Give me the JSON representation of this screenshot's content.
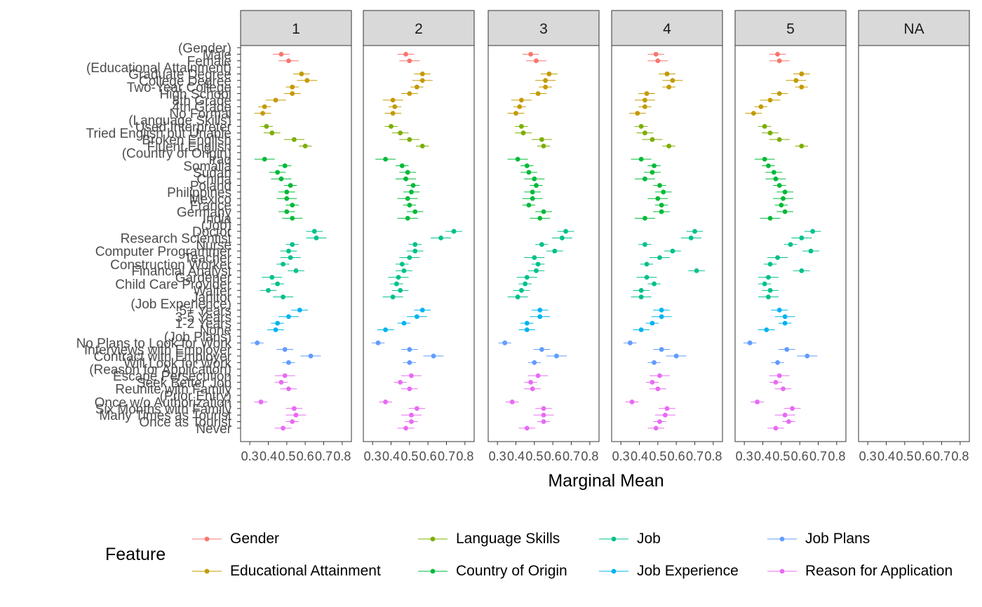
{
  "chart_data": {
    "type": "scatter",
    "subtype": "faceted point estimates with confidence intervals (horizontal error bars)",
    "xlabel": "Marginal Mean",
    "ylabel": "",
    "xlim": [
      0.25,
      0.85
    ],
    "xticks": [
      "0.3",
      "0.4",
      "0.5",
      "0.6",
      "0.7",
      "0.8"
    ],
    "xtick_values": [
      0.3,
      0.4,
      0.5,
      0.6,
      0.7,
      0.8
    ],
    "grid": false,
    "facets": [
      "1",
      "2",
      "3",
      "4",
      "5",
      "NA"
    ],
    "legend": {
      "title": "Feature",
      "position": "bottom",
      "entries": [
        {
          "name": "Gender",
          "color": "#F8766D"
        },
        {
          "name": "Educational Attainment",
          "color": "#C49A00"
        },
        {
          "name": "Language Skills",
          "color": "#7CAE00"
        },
        {
          "name": "Country of Origin",
          "color": "#00BA38"
        },
        {
          "name": "Job",
          "color": "#00C08B"
        },
        {
          "name": "Job Experience",
          "color": "#00B4EF"
        },
        {
          "name": "Job Plans",
          "color": "#619CFF"
        },
        {
          "name": "Reason for Application",
          "color": "#E76BF3"
        }
      ]
    },
    "rows": [
      {
        "label": "(Gender)",
        "feature": "Gender",
        "header": true
      },
      {
        "label": "Male",
        "feature": "Gender"
      },
      {
        "label": "Female",
        "feature": "Gender"
      },
      {
        "label": "(Educational Attainment)",
        "feature": "Educational Attainment",
        "header": true
      },
      {
        "label": "Graduate Degree",
        "feature": "Educational Attainment"
      },
      {
        "label": "College Degree",
        "feature": "Educational Attainment"
      },
      {
        "label": "Two-Year College",
        "feature": "Educational Attainment"
      },
      {
        "label": "High School",
        "feature": "Educational Attainment"
      },
      {
        "label": "8th Grade",
        "feature": "Educational Attainment"
      },
      {
        "label": "4th Grade",
        "feature": "Educational Attainment"
      },
      {
        "label": "No Formal",
        "feature": "Educational Attainment"
      },
      {
        "label": "(Language Skills)",
        "feature": "Language Skills",
        "header": true
      },
      {
        "label": "Used Interpreter",
        "feature": "Language Skills"
      },
      {
        "label": "Tried English but Unable",
        "feature": "Language Skills"
      },
      {
        "label": "Broken English",
        "feature": "Language Skills"
      },
      {
        "label": "Fluent English",
        "feature": "Language Skills"
      },
      {
        "label": "(Country of Origin)",
        "feature": "Country of Origin",
        "header": true
      },
      {
        "label": "Iraq",
        "feature": "Country of Origin"
      },
      {
        "label": "Somalia",
        "feature": "Country of Origin"
      },
      {
        "label": "Sudan",
        "feature": "Country of Origin"
      },
      {
        "label": "China",
        "feature": "Country of Origin"
      },
      {
        "label": "Poland",
        "feature": "Country of Origin"
      },
      {
        "label": "Philippines",
        "feature": "Country of Origin"
      },
      {
        "label": "Mexico",
        "feature": "Country of Origin"
      },
      {
        "label": "France",
        "feature": "Country of Origin"
      },
      {
        "label": "Germany",
        "feature": "Country of Origin"
      },
      {
        "label": "India",
        "feature": "Country of Origin"
      },
      {
        "label": "(Job)",
        "feature": "Job",
        "header": true
      },
      {
        "label": "Doctor",
        "feature": "Job"
      },
      {
        "label": "Research Scientist",
        "feature": "Job"
      },
      {
        "label": "Nurse",
        "feature": "Job"
      },
      {
        "label": "Computer Programmer",
        "feature": "Job"
      },
      {
        "label": "Teacher",
        "feature": "Job"
      },
      {
        "label": "Construction Worker",
        "feature": "Job"
      },
      {
        "label": "Financial Analyst",
        "feature": "Job"
      },
      {
        "label": "Gardener",
        "feature": "Job"
      },
      {
        "label": "Child Care Provider",
        "feature": "Job"
      },
      {
        "label": "Waiter",
        "feature": "Job"
      },
      {
        "label": "Janitor",
        "feature": "Job"
      },
      {
        "label": "(Job Experience)",
        "feature": "Job Experience",
        "header": true
      },
      {
        "label": "5+ Years",
        "feature": "Job Experience"
      },
      {
        "label": "3-5 Years",
        "feature": "Job Experience"
      },
      {
        "label": "1-2 Years",
        "feature": "Job Experience"
      },
      {
        "label": "None",
        "feature": "Job Experience"
      },
      {
        "label": "(Job Plans)",
        "feature": "Job Plans",
        "header": true
      },
      {
        "label": "No Plans to Look for Work",
        "feature": "Job Plans"
      },
      {
        "label": "Interviews with Employer",
        "feature": "Job Plans"
      },
      {
        "label": "Contract with Employer",
        "feature": "Job Plans"
      },
      {
        "label": "Will Look for Work",
        "feature": "Job Plans"
      },
      {
        "label": "(Reason for Application)",
        "feature": "Reason for Application",
        "header": true
      },
      {
        "label": "Escape Persecution",
        "feature": "Reason for Application"
      },
      {
        "label": "Seek Better Job",
        "feature": "Reason for Application"
      },
      {
        "label": "Reunite with Family",
        "feature": "Reason for Application"
      },
      {
        "label": "(Prior Entry)",
        "feature": "Reason for Application",
        "header": true
      },
      {
        "label": "Once w/o Authorization",
        "feature": "Reason for Application"
      },
      {
        "label": "Six Months with Family",
        "feature": "Reason for Application"
      },
      {
        "label": "Many Times as Tourist",
        "feature": "Reason for Application"
      },
      {
        "label": "Once as Tourist",
        "feature": "Reason for Application"
      },
      {
        "label": "Never",
        "feature": "Reason for Application"
      }
    ],
    "series": [
      {
        "facet": "1",
        "estimates": [
          null,
          0.47,
          0.51,
          null,
          0.58,
          0.61,
          0.53,
          0.53,
          0.44,
          0.38,
          0.37,
          null,
          0.39,
          0.42,
          0.54,
          0.6,
          null,
          0.38,
          0.49,
          0.45,
          0.47,
          0.52,
          0.5,
          0.5,
          0.53,
          0.5,
          0.53,
          null,
          0.65,
          0.66,
          0.53,
          0.51,
          0.52,
          0.48,
          0.55,
          0.42,
          0.45,
          0.4,
          0.48,
          null,
          0.57,
          0.51,
          0.45,
          0.44,
          null,
          0.34,
          0.49,
          0.63,
          0.51,
          null,
          0.49,
          0.47,
          0.51,
          null,
          0.36,
          0.54,
          0.55,
          0.53,
          0.48
        ]
      },
      {
        "facet": "2",
        "estimates": [
          null,
          0.48,
          0.5,
          null,
          0.57,
          0.57,
          0.54,
          0.5,
          0.41,
          0.42,
          0.41,
          null,
          0.4,
          0.45,
          0.5,
          0.57,
          null,
          0.37,
          0.46,
          0.49,
          0.48,
          0.52,
          0.51,
          0.49,
          0.5,
          0.53,
          0.49,
          null,
          0.74,
          0.67,
          0.53,
          0.53,
          0.5,
          0.46,
          0.47,
          0.44,
          0.43,
          0.45,
          0.41,
          null,
          0.57,
          0.54,
          0.47,
          0.37,
          null,
          0.33,
          0.5,
          0.63,
          0.5,
          null,
          0.51,
          0.45,
          0.5,
          null,
          0.37,
          0.54,
          0.51,
          0.51,
          0.48
        ]
      },
      {
        "facet": "3",
        "estimates": [
          null,
          0.48,
          0.51,
          null,
          0.58,
          0.56,
          0.56,
          0.52,
          0.43,
          0.42,
          0.4,
          null,
          0.43,
          0.44,
          0.54,
          0.55,
          null,
          0.41,
          0.46,
          0.47,
          0.5,
          0.51,
          0.49,
          0.49,
          0.47,
          0.55,
          0.53,
          null,
          0.67,
          0.65,
          0.54,
          0.61,
          0.5,
          0.52,
          0.51,
          0.46,
          0.45,
          0.43,
          0.41,
          null,
          0.53,
          0.53,
          0.46,
          0.46,
          null,
          0.34,
          0.54,
          0.62,
          0.5,
          null,
          0.52,
          0.48,
          0.49,
          null,
          0.38,
          0.55,
          0.55,
          0.55,
          0.46
        ]
      },
      {
        "facet": "4",
        "estimates": [
          null,
          0.49,
          0.5,
          null,
          0.55,
          0.58,
          0.56,
          0.44,
          0.43,
          0.43,
          0.39,
          null,
          0.41,
          0.43,
          0.47,
          0.56,
          null,
          0.41,
          0.48,
          0.47,
          0.43,
          0.51,
          0.53,
          0.5,
          0.52,
          0.52,
          0.43,
          null,
          0.7,
          0.68,
          0.43,
          0.58,
          0.51,
          0.44,
          0.71,
          0.44,
          0.48,
          0.41,
          0.41,
          null,
          0.52,
          0.52,
          0.47,
          0.41,
          null,
          0.35,
          0.52,
          0.6,
          0.48,
          null,
          0.51,
          0.47,
          0.5,
          null,
          0.36,
          0.55,
          0.54,
          0.51,
          0.49
        ]
      },
      {
        "facet": "5",
        "estimates": [
          null,
          0.48,
          0.49,
          null,
          0.61,
          0.58,
          0.61,
          0.49,
          0.44,
          0.39,
          0.35,
          null,
          0.41,
          0.44,
          0.49,
          0.61,
          null,
          0.41,
          0.43,
          0.46,
          0.47,
          0.49,
          0.52,
          0.51,
          0.5,
          0.52,
          0.44,
          null,
          0.67,
          0.61,
          0.55,
          0.66,
          0.48,
          0.44,
          0.61,
          0.43,
          0.41,
          0.44,
          0.43,
          null,
          0.49,
          0.52,
          0.52,
          0.42,
          null,
          0.33,
          0.53,
          0.64,
          0.48,
          null,
          0.49,
          0.47,
          0.51,
          null,
          0.37,
          0.56,
          0.52,
          0.54,
          0.47
        ]
      },
      {
        "facet": "NA",
        "estimates": []
      }
    ]
  }
}
